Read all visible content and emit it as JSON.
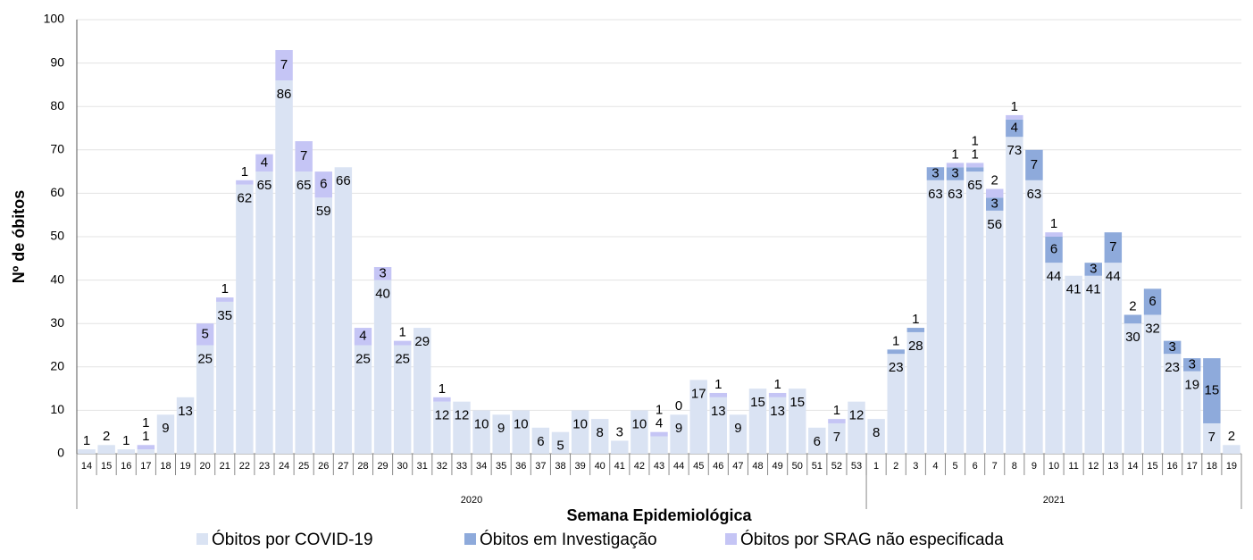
{
  "chart_data": {
    "type": "stacked_bar",
    "y_label": "Nº de óbitos",
    "x_label": "Semana Epidemiológica",
    "categories": [
      14,
      15,
      16,
      17,
      18,
      19,
      20,
      21,
      22,
      23,
      24,
      25,
      26,
      27,
      28,
      29,
      30,
      31,
      32,
      33,
      34,
      35,
      36,
      37,
      38,
      39,
      40,
      41,
      42,
      43,
      44,
      45,
      46,
      47,
      48,
      49,
      50,
      51,
      52,
      53,
      1,
      2,
      3,
      4,
      5,
      6,
      7,
      8,
      9,
      10,
      11,
      12,
      13,
      14,
      15,
      16,
      17,
      18,
      19
    ],
    "groups": [
      "2020",
      "2021"
    ],
    "series": [
      {
        "name": "Óbitos por COVID-19",
        "color": "#dae3f3",
        "values": [
          1,
          2,
          1,
          1,
          9,
          13,
          25,
          35,
          62,
          65,
          86,
          65,
          59,
          66,
          25,
          40,
          25,
          29,
          12,
          12,
          10,
          9,
          10,
          6,
          5,
          10,
          8,
          3,
          10,
          4,
          9,
          17,
          13,
          9,
          15,
          13,
          15,
          6,
          7,
          12,
          8,
          23,
          28,
          63,
          63,
          65,
          56,
          73,
          63,
          44,
          41,
          41,
          44,
          30,
          32,
          23,
          19,
          7,
          2
        ]
      },
      {
        "name": "Óbitos em Investigação",
        "color": "#8eaadb",
        "values": [
          null,
          null,
          null,
          null,
          null,
          null,
          null,
          null,
          null,
          null,
          null,
          null,
          null,
          null,
          null,
          null,
          null,
          null,
          null,
          null,
          null,
          null,
          null,
          null,
          null,
          null,
          null,
          null,
          null,
          null,
          null,
          null,
          null,
          null,
          null,
          null,
          null,
          null,
          null,
          null,
          null,
          1,
          1,
          3,
          3,
          1,
          3,
          4,
          7,
          6,
          null,
          3,
          7,
          2,
          6,
          3,
          3,
          15,
          null
        ]
      },
      {
        "name": "Óbitos por SRAG não especificada",
        "color": "#c5c5f5",
        "values": [
          null,
          null,
          null,
          1,
          null,
          null,
          5,
          1,
          1,
          4,
          7,
          7,
          6,
          null,
          4,
          3,
          1,
          null,
          1,
          null,
          null,
          null,
          null,
          null,
          null,
          null,
          null,
          null,
          null,
          1,
          0,
          null,
          1,
          null,
          null,
          1,
          null,
          null,
          1,
          null,
          null,
          null,
          null,
          null,
          1,
          1,
          2,
          1,
          null,
          1,
          null,
          null,
          null,
          null,
          null,
          null,
          null,
          null,
          null
        ]
      }
    ],
    "ylim": [
      0,
      100
    ],
    "yticks": [
      0,
      10,
      20,
      30,
      40,
      50,
      60,
      70,
      80,
      90,
      100
    ],
    "grid": true
  }
}
